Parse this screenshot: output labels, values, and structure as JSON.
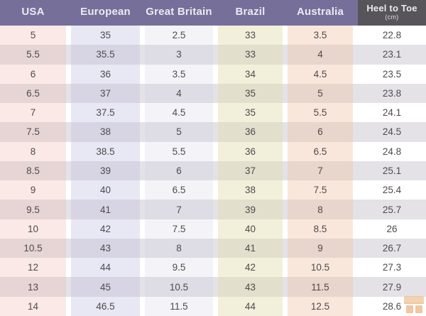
{
  "table": {
    "columns": [
      {
        "id": "usa",
        "label": "USA"
      },
      {
        "id": "european",
        "label": "European"
      },
      {
        "id": "great-britain",
        "label": "Great Britain"
      },
      {
        "id": "brazil",
        "label": "Brazil"
      },
      {
        "id": "australia",
        "label": "Australia"
      },
      {
        "id": "heel-to-toe",
        "label": "Heel to Toe",
        "sublabel": "(cm)"
      }
    ]
  },
  "colors": {
    "header_purple": "#756F99",
    "header_dark": "#57545A",
    "header_text": "#EDE9F2",
    "body_text": "#4E4A4C",
    "row_stripe": "#E4E2E6",
    "tint_usa": "#FAE9E7",
    "tint_european": "#E8E7F4",
    "tint_great_britain": "#F4F4F8",
    "tint_brazil": "#F2F0DB",
    "tint_australia": "#F9E7DB",
    "watermark_orange": "#E49B55"
  },
  "watermark": {
    "icon": "storefront-logo"
  },
  "chart_data": {
    "type": "table",
    "columns": [
      "USA",
      "European",
      "Great Britain",
      "Brazil",
      "Australia",
      "Heel to Toe (cm)"
    ],
    "rows": [
      [
        "5",
        "35",
        "2.5",
        "33",
        "3.5",
        "22.8"
      ],
      [
        "5.5",
        "35.5",
        "3",
        "33",
        "4",
        "23.1"
      ],
      [
        "6",
        "36",
        "3.5",
        "34",
        "4.5",
        "23.5"
      ],
      [
        "6.5",
        "37",
        "4",
        "35",
        "5",
        "23.8"
      ],
      [
        "7",
        "37.5",
        "4.5",
        "35",
        "5.5",
        "24.1"
      ],
      [
        "7.5",
        "38",
        "5",
        "36",
        "6",
        "24.5"
      ],
      [
        "8",
        "38.5",
        "5.5",
        "36",
        "6.5",
        "24.8"
      ],
      [
        "8.5",
        "39",
        "6",
        "37",
        "7",
        "25.1"
      ],
      [
        "9",
        "40",
        "6.5",
        "38",
        "7.5",
        "25.4"
      ],
      [
        "9.5",
        "41",
        "7",
        "39",
        "8",
        "25.7"
      ],
      [
        "10",
        "42",
        "7.5",
        "40",
        "8.5",
        "26"
      ],
      [
        "10.5",
        "43",
        "8",
        "41",
        "9",
        "26.7"
      ],
      [
        "12",
        "44",
        "9.5",
        "42",
        "10.5",
        "27.3"
      ],
      [
        "13",
        "45",
        "10.5",
        "43",
        "11.5",
        "27.9"
      ],
      [
        "14",
        "46.5",
        "11.5",
        "44",
        "12.5",
        "28.6"
      ]
    ],
    "grid": "alternating-row-stripes",
    "legend": "none"
  }
}
